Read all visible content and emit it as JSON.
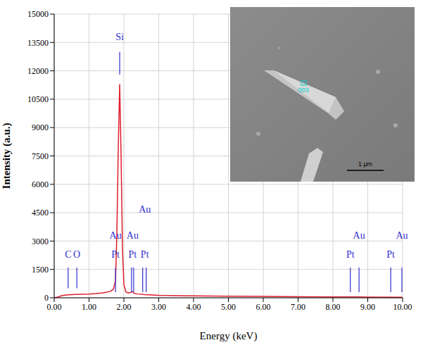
{
  "chart_data": {
    "type": "line",
    "x_label": "Energy (keV)",
    "y_label": "Intensity (a.u.)",
    "xlim": [
      0,
      10
    ],
    "xticks": [
      {
        "value": 0,
        "label": "0.00"
      },
      {
        "value": 1,
        "label": "1.00"
      },
      {
        "value": 2,
        "label": "2.00"
      },
      {
        "value": 3,
        "label": "3.00"
      },
      {
        "value": 4,
        "label": "4.00"
      },
      {
        "value": 5,
        "label": "5.00"
      },
      {
        "value": 6,
        "label": "6.00"
      },
      {
        "value": 7,
        "label": "7.00"
      },
      {
        "value": 8,
        "label": "8.00"
      },
      {
        "value": 9,
        "label": "9.00"
      },
      {
        "value": 10,
        "label": "10.00"
      }
    ],
    "ylim": [
      0,
      15000
    ],
    "yticks": [
      0,
      1500,
      3000,
      4500,
      6000,
      7500,
      9000,
      10500,
      12000,
      13500,
      15000
    ],
    "grid": true,
    "color": "#e01e2e",
    "x": [
      0,
      0.1,
      0.2,
      0.3,
      0.4,
      0.5,
      0.6,
      0.8,
      1.0,
      1.2,
      1.4,
      1.6,
      1.7,
      1.76,
      1.8,
      1.84,
      1.88,
      1.92,
      1.96,
      2.0,
      2.06,
      2.14,
      2.24,
      2.3,
      2.4,
      2.6,
      3.0,
      4.0,
      5.0,
      6.0,
      7.0,
      8.0,
      9.0,
      10.0
    ],
    "values": [
      0,
      40,
      100,
      140,
      160,
      170,
      180,
      190,
      200,
      220,
      260,
      330,
      450,
      900,
      3500,
      8000,
      11300,
      7500,
      2500,
      700,
      300,
      250,
      320,
      230,
      200,
      170,
      130,
      100,
      80,
      70,
      60,
      50,
      40,
      30
    ],
    "element_lines": [
      {
        "x": 1.88,
        "y": [
          11800,
          13000
        ]
      },
      {
        "x": 0.4,
        "y": [
          500,
          1600
        ]
      },
      {
        "x": 0.65,
        "y": [
          500,
          1600
        ]
      },
      {
        "x": 1.76,
        "y": [
          300,
          1600
        ]
      },
      {
        "x": 2.22,
        "y": [
          300,
          1600
        ]
      },
      {
        "x": 2.28,
        "y": [
          300,
          1600
        ]
      },
      {
        "x": 2.54,
        "y": [
          300,
          1600
        ]
      },
      {
        "x": 2.64,
        "y": [
          300,
          1600
        ]
      },
      {
        "x": 8.5,
        "y": [
          300,
          1600
        ]
      },
      {
        "x": 8.75,
        "y": [
          300,
          1600
        ]
      },
      {
        "x": 9.66,
        "y": [
          300,
          1600
        ]
      },
      {
        "x": 9.98,
        "y": [
          300,
          1600
        ]
      }
    ],
    "element_labels": [
      {
        "text": "Si",
        "x": 1.88,
        "y": 13800
      },
      {
        "text": "C",
        "x": 0.4,
        "y": 2300
      },
      {
        "text": "O",
        "x": 0.65,
        "y": 2300
      },
      {
        "text": "Au",
        "x": 1.76,
        "y": 3300
      },
      {
        "text": "Pt",
        "x": 1.76,
        "y": 2300
      },
      {
        "text": "Au",
        "x": 2.25,
        "y": 3300
      },
      {
        "text": "Pt",
        "x": 2.25,
        "y": 2300
      },
      {
        "text": "Au",
        "x": 2.6,
        "y": 4700
      },
      {
        "text": "Pt",
        "x": 2.6,
        "y": 2300
      },
      {
        "text": "Pt",
        "x": 8.5,
        "y": 2300
      },
      {
        "text": "Au",
        "x": 8.75,
        "y": 3300
      },
      {
        "text": "Pt",
        "x": 9.66,
        "y": 2300
      },
      {
        "text": "Au",
        "x": 9.98,
        "y": 3300
      }
    ],
    "inset": {
      "scale_bar_label": "1 µm",
      "marker_label": "003"
    }
  }
}
